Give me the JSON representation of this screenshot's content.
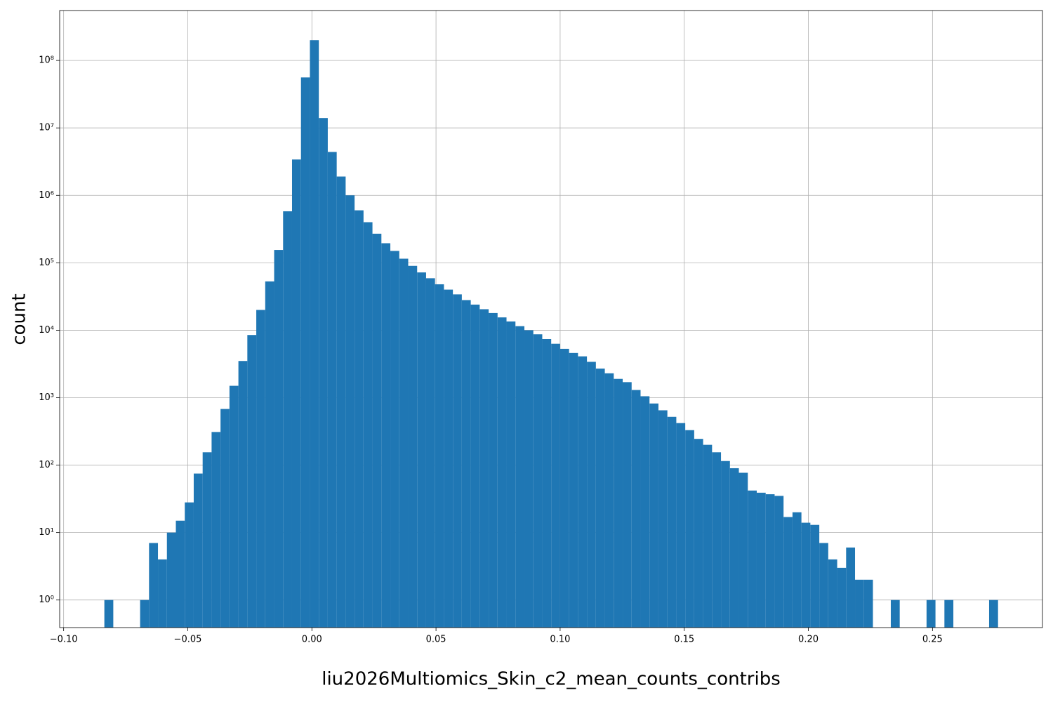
{
  "chart_data": {
    "type": "histogram",
    "x_label": "liu2026Multiomics_Skin_c2_mean_counts_contribs",
    "y_label": "count",
    "color": "#1f77b4",
    "log_y": true,
    "grid": true,
    "bins": [
      -0.0836,
      -0.08,
      -0.0764,
      -0.0728,
      -0.0692,
      -0.0656,
      -0.062,
      -0.0584,
      -0.0548,
      -0.0512,
      -0.0476,
      -0.044,
      -0.0404,
      -0.0368,
      -0.0332,
      -0.0296,
      -0.026,
      -0.0224,
      -0.0188,
      -0.0152,
      -0.0116,
      -0.008,
      -0.0044,
      -0.0008,
      0.0028,
      0.0064,
      0.01,
      0.0136,
      0.0172,
      0.0208,
      0.0244,
      0.028,
      0.0316,
      0.0352,
      0.0388,
      0.0424,
      0.046,
      0.0496,
      0.0532,
      0.0568,
      0.0604,
      0.064,
      0.0676,
      0.0712,
      0.0748,
      0.0784,
      0.082,
      0.0856,
      0.0892,
      0.0928,
      0.0964,
      0.1,
      0.1036,
      0.1072,
      0.1108,
      0.1144,
      0.118,
      0.1216,
      0.1252,
      0.1288,
      0.1324,
      0.136,
      0.1396,
      0.1432,
      0.1468,
      0.1504,
      0.154,
      0.1576,
      0.1612,
      0.1648,
      0.1684,
      0.172,
      0.1756,
      0.1792,
      0.1828,
      0.1864,
      0.19,
      0.1936,
      0.1972,
      0.2008,
      0.2044,
      0.208,
      0.2116,
      0.2152,
      0.2188,
      0.2224,
      0.226,
      0.2296,
      0.2332,
      0.2368,
      0.2404,
      0.244,
      0.2476,
      0.2512,
      0.2548,
      0.2584,
      0.262,
      0.2656,
      0.2692,
      0.2728,
      0.2764
    ],
    "values": [
      1,
      0,
      0,
      0,
      1,
      7,
      4,
      10,
      15,
      28,
      75,
      155,
      310,
      680,
      1500,
      3500,
      8500,
      20000,
      53000,
      155000,
      580000,
      3400000,
      56000000,
      200000000,
      14000000,
      4400000,
      1900000,
      1000000,
      600000,
      400000,
      270000,
      195000,
      150000,
      115000,
      90000,
      72000,
      59000,
      48000,
      40000,
      34000,
      28000,
      24000,
      20500,
      18000,
      15500,
      13500,
      11500,
      10000,
      8700,
      7400,
      6300,
      5300,
      4600,
      4100,
      3400,
      2700,
      2300,
      1900,
      1700,
      1300,
      1050,
      820,
      650,
      520,
      420,
      330,
      245,
      200,
      155,
      115,
      90,
      77,
      42,
      39,
      37,
      35,
      17,
      20,
      14,
      13,
      7,
      4,
      3,
      6,
      2,
      2,
      0,
      0,
      1,
      0,
      0,
      0,
      1,
      0,
      1,
      0,
      0,
      0,
      0,
      1
    ],
    "xlim": [
      -0.1016,
      0.2943
    ],
    "ylim": [
      0.39,
      550000000
    ],
    "xticks": [
      {
        "value": -0.1,
        "label": "−0.10"
      },
      {
        "value": -0.05,
        "label": "−0.05"
      },
      {
        "value": 0,
        "label": "0.00"
      },
      {
        "value": 0.05,
        "label": "0.05"
      },
      {
        "value": 0.1,
        "label": "0.10"
      },
      {
        "value": 0.15,
        "label": "0.15"
      },
      {
        "value": 0.2,
        "label": "0.20"
      },
      {
        "value": 0.25,
        "label": "0.25"
      }
    ],
    "yticks": [
      {
        "value": 1,
        "label": "10⁰"
      },
      {
        "value": 10,
        "label": "10¹"
      },
      {
        "value": 100,
        "label": "10²"
      },
      {
        "value": 1000,
        "label": "10³"
      },
      {
        "value": 10000,
        "label": "10⁴"
      },
      {
        "value": 100000,
        "label": "10⁵"
      },
      {
        "value": 1000000,
        "label": "10⁶"
      },
      {
        "value": 10000000,
        "label": "10⁷"
      },
      {
        "value": 100000000,
        "label": "10⁸"
      }
    ]
  }
}
